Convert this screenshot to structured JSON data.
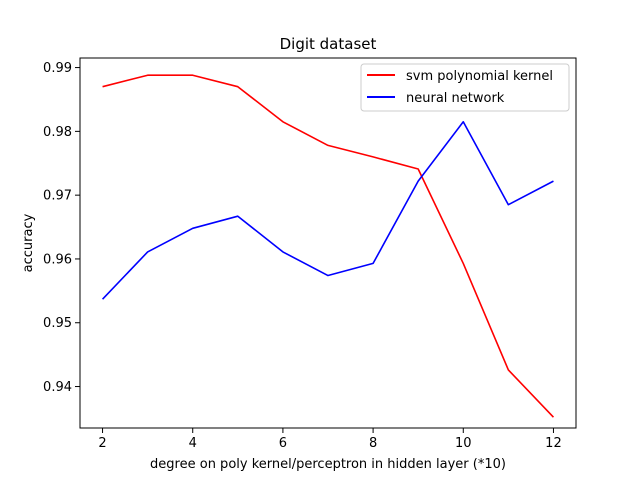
{
  "chart_data": {
    "type": "line",
    "title": "Digit dataset",
    "xlabel": "degree on poly kernel/perceptron in hidden layer (*10)",
    "ylabel": "accuracy",
    "x": [
      2,
      3,
      4,
      5,
      6,
      7,
      8,
      9,
      10,
      11,
      12
    ],
    "xlim": [
      1.5,
      12.5
    ],
    "ylim": [
      0.9335,
      0.9915
    ],
    "xticks": [
      2,
      4,
      6,
      8,
      10,
      12
    ],
    "yticks": [
      0.94,
      0.95,
      0.96,
      0.97,
      0.98,
      0.99
    ],
    "xtick_labels": [
      "2",
      "4",
      "6",
      "8",
      "10",
      "12"
    ],
    "ytick_labels": [
      "0.94",
      "0.95",
      "0.96",
      "0.97",
      "0.98",
      "0.99"
    ],
    "grid": false,
    "legend_position": "top-right",
    "series": [
      {
        "name": "svm polynomial kernel",
        "color": "#ff0000",
        "values": [
          0.987,
          0.9888,
          0.9888,
          0.987,
          0.9815,
          0.9778,
          0.976,
          0.9741,
          0.9593,
          0.9426,
          0.9352
        ]
      },
      {
        "name": "neural network",
        "color": "#0000ff",
        "values": [
          0.9537,
          0.9611,
          0.9648,
          0.9667,
          0.9611,
          0.9574,
          0.9593,
          0.9722,
          0.9815,
          0.9685,
          0.9722
        ]
      }
    ]
  }
}
